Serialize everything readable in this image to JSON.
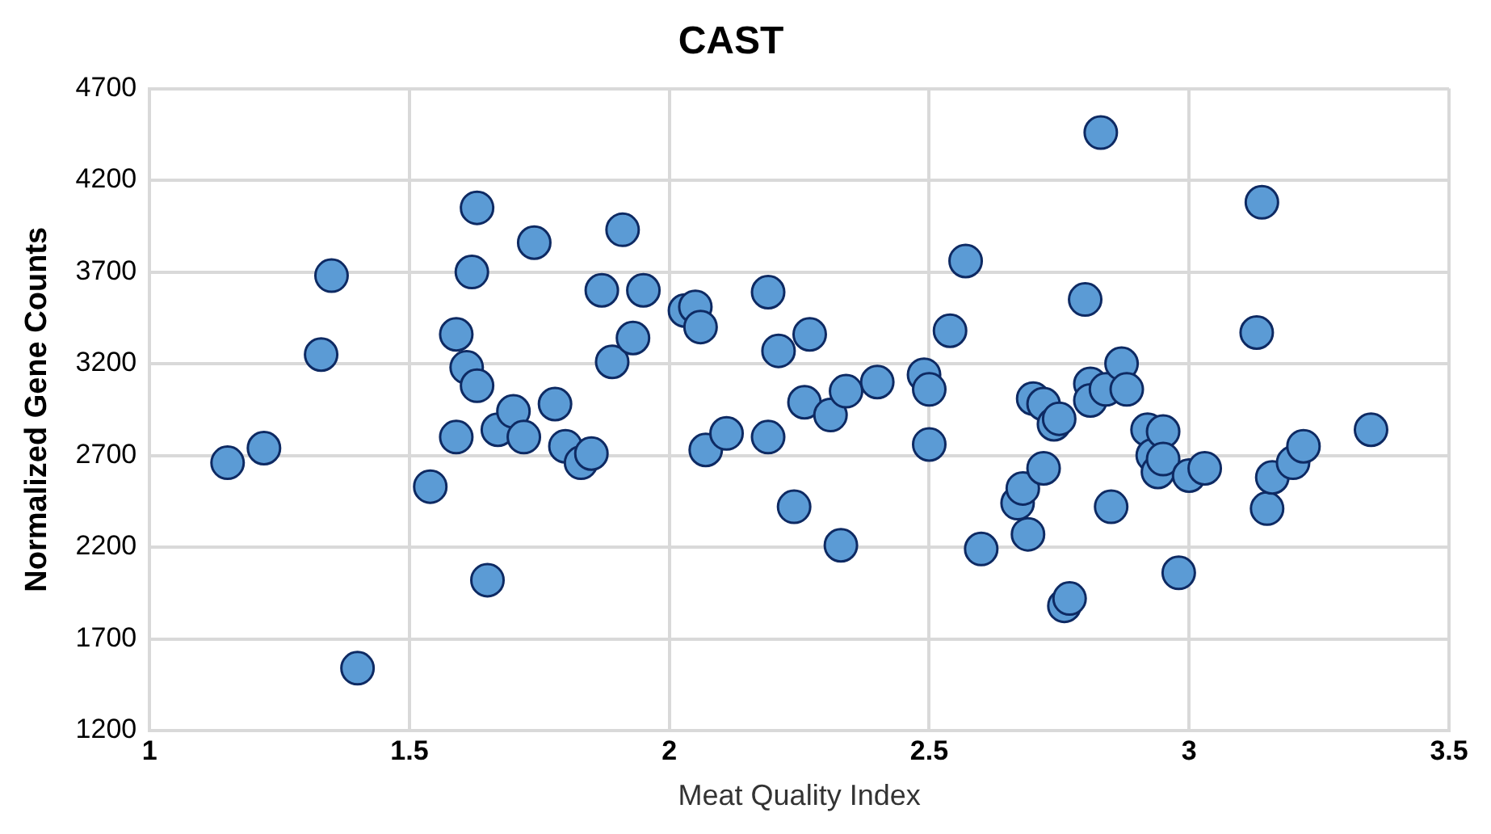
{
  "chart_data": {
    "type": "scatter",
    "title": "CAST",
    "xlabel": "Meat Quality Index",
    "ylabel": "Normalized Gene Counts",
    "xlim": [
      1,
      3.5
    ],
    "xticks": [
      1,
      1.5,
      2,
      2.5,
      3,
      3.5
    ],
    "ylim": [
      1200,
      4700
    ],
    "yticks": [
      1200,
      1700,
      2200,
      2700,
      3200,
      3700,
      4200,
      4700
    ],
    "grid": true,
    "legend": false,
    "marker": "circle",
    "series": [
      {
        "color": "#5b9bd5",
        "x": [
          1.15,
          1.22,
          1.33,
          1.35,
          1.4,
          1.54,
          1.59,
          1.59,
          1.61,
          1.62,
          1.63,
          1.63,
          1.65,
          1.67,
          1.7,
          1.72,
          1.74,
          1.78,
          1.8,
          1.83,
          1.85,
          1.87,
          1.89,
          1.91,
          1.93,
          1.95,
          2.03,
          2.05,
          2.06,
          2.07,
          2.11,
          2.19,
          2.19,
          2.21,
          2.24,
          2.26,
          2.27,
          2.31,
          2.33,
          2.34,
          2.4,
          2.49,
          2.5,
          2.5,
          2.54,
          2.57,
          2.6,
          2.67,
          2.68,
          2.69,
          2.7,
          2.72,
          2.72,
          2.74,
          2.75,
          2.76,
          2.77,
          2.8,
          2.81,
          2.81,
          2.83,
          2.84,
          2.85,
          2.87,
          2.88,
          2.92,
          2.93,
          2.94,
          2.95,
          2.95,
          2.98,
          3.0,
          3.03,
          3.13,
          3.14,
          3.15,
          3.16,
          3.2,
          3.22,
          3.35
        ],
        "values": [
          2660,
          2740,
          3250,
          3680,
          1540,
          2530,
          2800,
          3360,
          3180,
          3700,
          4050,
          3080,
          2020,
          2840,
          2940,
          2800,
          3860,
          2980,
          2750,
          2660,
          2710,
          3600,
          3210,
          3930,
          3340,
          3600,
          3490,
          3510,
          3400,
          2730,
          2820,
          3590,
          2800,
          3270,
          2420,
          2990,
          3360,
          2920,
          2210,
          3050,
          3100,
          3140,
          3060,
          2760,
          3380,
          3760,
          2190,
          2440,
          2520,
          2270,
          3010,
          2980,
          2630,
          2870,
          2900,
          1880,
          1920,
          3550,
          3090,
          3000,
          4460,
          3060,
          2420,
          3200,
          3060,
          2840,
          2700,
          2610,
          2830,
          2680,
          2060,
          2590,
          2630,
          3370,
          4080,
          2410,
          2580,
          2660,
          2750,
          2840
        ]
      }
    ]
  }
}
